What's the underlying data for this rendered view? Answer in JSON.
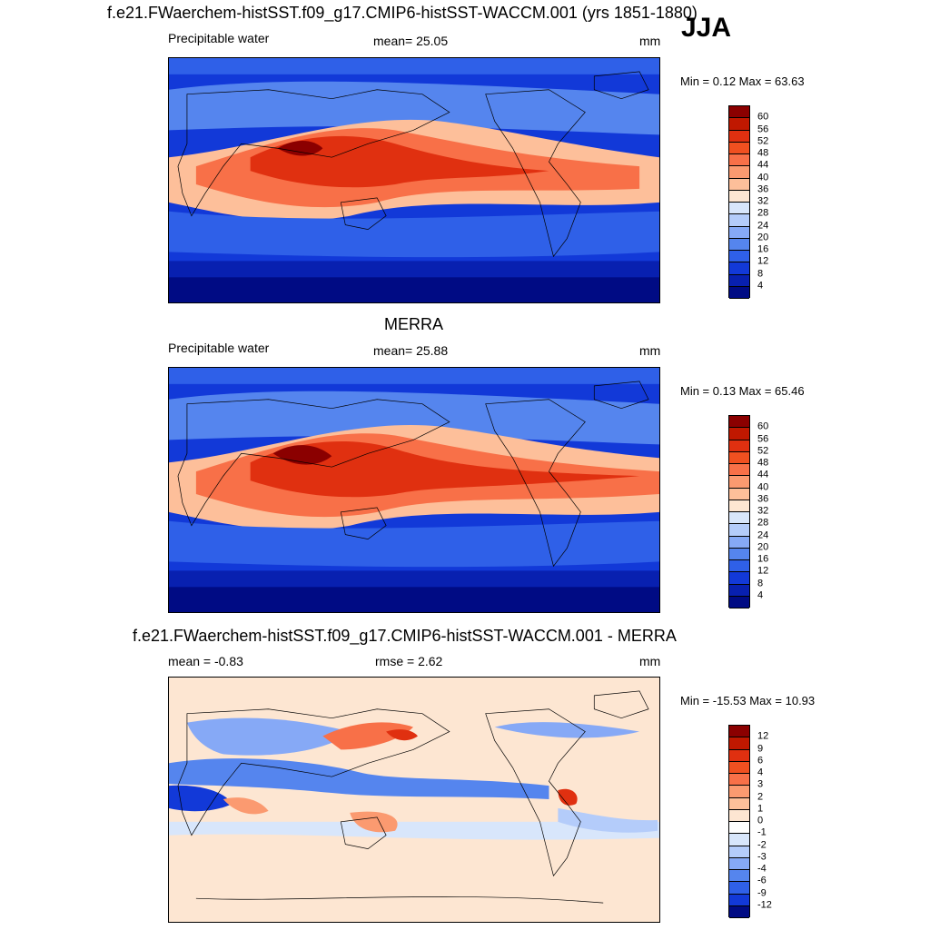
{
  "header": {
    "title": "f.e21.FWaerchem-histSST.f09_g17.CMIP6-histSST-WACCM.001 (yrs 1851-1880)",
    "season": "JJA"
  },
  "panels": [
    {
      "subtitle": "",
      "left": "Precipitable water",
      "mid": "mean=  25.05",
      "right": "mm",
      "minmax": "Min =   0.12 Max =  63.63",
      "colorbar": {
        "labels": [
          "60",
          "56",
          "52",
          "48",
          "44",
          "40",
          "36",
          "32",
          "28",
          "24",
          "20",
          "16",
          "12",
          "8",
          "4"
        ],
        "colors": [
          "#8b0000",
          "#c01800",
          "#e03010",
          "#f05020",
          "#f87048",
          "#fb9a70",
          "#fdbf9a",
          "#fde6d2",
          "#d8e6fb",
          "#b4ccfa",
          "#86a9f6",
          "#5585ee",
          "#2f60e8",
          "#1239d8",
          "#0820b0",
          "#000b84"
        ]
      }
    },
    {
      "subtitle": "MERRA",
      "left": "Precipitable water",
      "mid": "mean=  25.88",
      "right": "mm",
      "minmax": "Min =   0.13 Max =  65.46",
      "colorbar": {
        "labels": [
          "60",
          "56",
          "52",
          "48",
          "44",
          "40",
          "36",
          "32",
          "28",
          "24",
          "20",
          "16",
          "12",
          "8",
          "4"
        ],
        "colors": [
          "#8b0000",
          "#c01800",
          "#e03010",
          "#f05020",
          "#f87048",
          "#fb9a70",
          "#fdbf9a",
          "#fde6d2",
          "#d8e6fb",
          "#b4ccfa",
          "#86a9f6",
          "#5585ee",
          "#2f60e8",
          "#1239d8",
          "#0820b0",
          "#000b84"
        ]
      }
    },
    {
      "subtitle": "f.e21.FWaerchem-histSST.f09_g17.CMIP6-histSST-WACCM.001 - MERRA",
      "left": "mean =  -0.83",
      "mid": "rmse =   2.62",
      "right": "mm",
      "minmax": "Min = -15.53 Max =  10.93",
      "colorbar": {
        "labels": [
          "12",
          "9",
          "6",
          "4",
          "3",
          "2",
          "1",
          "0",
          "-1",
          "-2",
          "-3",
          "-4",
          "-6",
          "-9",
          "-12"
        ],
        "colors": [
          "#8b0000",
          "#c01800",
          "#e03010",
          "#f05020",
          "#f87048",
          "#fb9a70",
          "#fdbf9a",
          "#fde6d2",
          "#ffffff",
          "#d8e6fb",
          "#b4ccfa",
          "#86a9f6",
          "#5585ee",
          "#2f60e8",
          "#1239d8",
          "#000b84"
        ]
      }
    }
  ]
}
